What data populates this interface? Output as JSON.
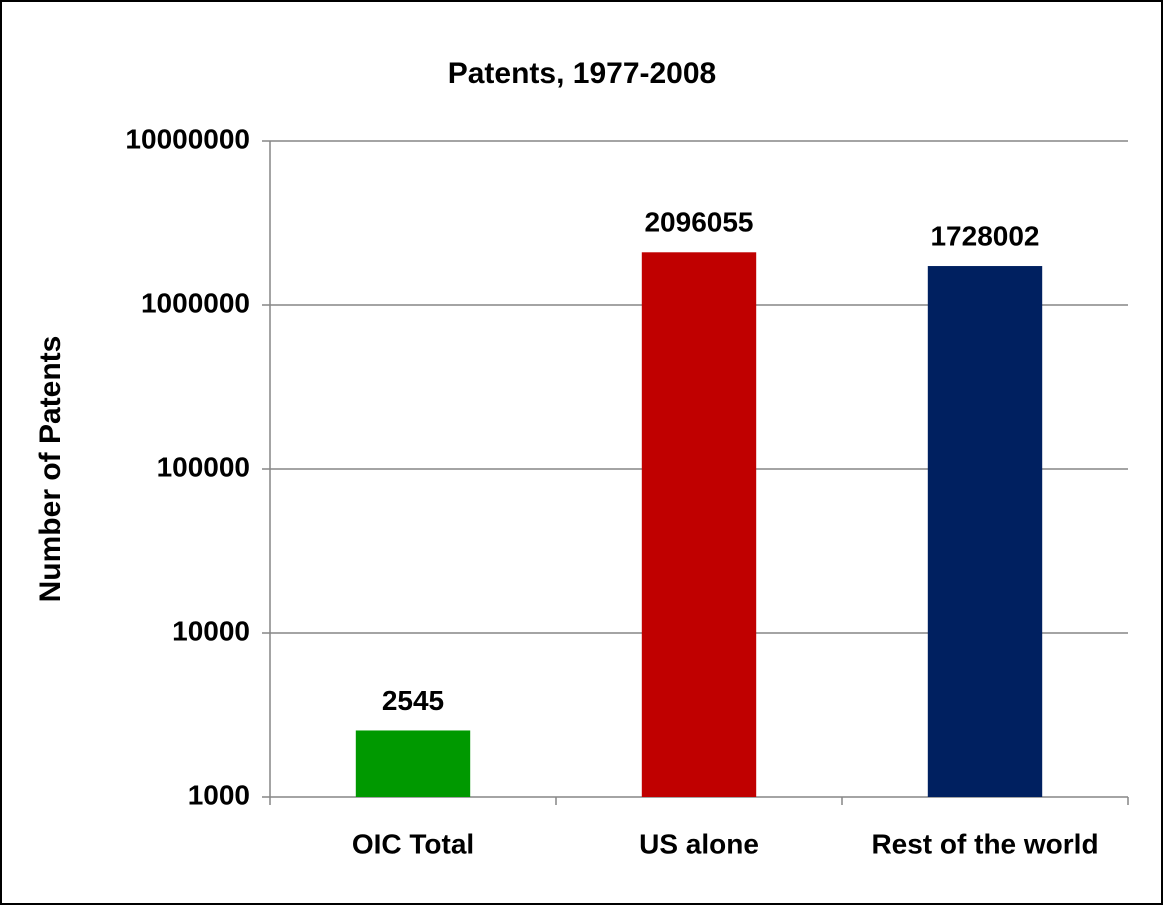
{
  "chart_data": {
    "type": "bar",
    "title": "Patents, 1977-2008",
    "y_label": "Number of Patents",
    "categories": [
      "OIC Total",
      "US alone",
      "Rest of the world"
    ],
    "values": [
      2545,
      2096055,
      1728002
    ],
    "colors": [
      "#009900",
      "#c00000",
      "#002060"
    ],
    "ylim": [
      1000,
      10000000
    ],
    "yticks": [
      1000,
      10000,
      100000,
      1000000,
      10000000
    ],
    "log_scale": true,
    "grid": true
  }
}
